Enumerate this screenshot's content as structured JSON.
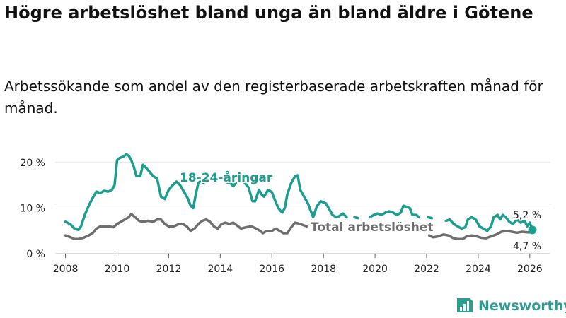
{
  "title": "Högre arbetslöshet bland unga än bland äldre i Götene",
  "subtitle": "Arbetssökande som andel av den registerbaserade arbetskraften månad för månad.",
  "brand": {
    "name": "Newsworthy",
    "icon": "bar-chart-logo-icon"
  },
  "colors": {
    "youth": "#1a9e8f",
    "total": "#6e6e6e",
    "grid": "#dddddd",
    "text": "#222222"
  },
  "chart_data": {
    "type": "line",
    "xlim": [
      2007.6,
      2026.8
    ],
    "ylim": [
      0,
      22
    ],
    "x_ticks": [
      2008,
      2010,
      2012,
      2014,
      2016,
      2018,
      2020,
      2022,
      2024,
      2026
    ],
    "x_tick_labels": [
      "2008",
      "2010",
      "2012",
      "2014",
      "2016",
      "2018",
      "2020",
      "2022",
      "2024",
      "2026"
    ],
    "y_ticks": [
      0,
      10,
      20
    ],
    "y_tick_labels": [
      "0 %",
      "10 %",
      "20 %"
    ],
    "grid": "horizontal",
    "series": [
      {
        "name": "18-24-åringar",
        "color": "#1a9e8f",
        "end_label": "5,2 %",
        "points": [
          [
            2008.0,
            7.0
          ],
          [
            2008.2,
            6.4
          ],
          [
            2008.35,
            5.5
          ],
          [
            2008.5,
            5.2
          ],
          [
            2008.6,
            6.0
          ],
          [
            2008.75,
            8.5
          ],
          [
            2008.9,
            10.5
          ],
          [
            2009.05,
            12.2
          ],
          [
            2009.2,
            13.6
          ],
          [
            2009.35,
            13.3
          ],
          [
            2009.5,
            13.8
          ],
          [
            2009.65,
            13.6
          ],
          [
            2009.8,
            14.0
          ],
          [
            2009.9,
            15.0
          ],
          [
            2010.0,
            20.5
          ],
          [
            2010.1,
            21.0
          ],
          [
            2010.25,
            21.3
          ],
          [
            2010.35,
            21.8
          ],
          [
            2010.45,
            21.5
          ],
          [
            2010.55,
            20.5
          ],
          [
            2010.65,
            19.0
          ],
          [
            2010.75,
            17.0
          ],
          [
            2010.9,
            17.0
          ],
          [
            2011.0,
            19.5
          ],
          [
            2011.1,
            19.0
          ],
          [
            2011.25,
            18.0
          ],
          [
            2011.4,
            17.0
          ],
          [
            2011.55,
            16.5
          ],
          [
            2011.7,
            12.5
          ],
          [
            2011.85,
            12.0
          ],
          [
            2012.0,
            14.0
          ],
          [
            2012.15,
            15.0
          ],
          [
            2012.3,
            15.8
          ],
          [
            2012.45,
            15.0
          ],
          [
            2012.6,
            13.5
          ],
          [
            2012.75,
            12.0
          ],
          [
            2012.85,
            10.5
          ],
          [
            2012.95,
            10.0
          ],
          [
            2013.05,
            13.0
          ],
          [
            2013.15,
            15.5
          ],
          [
            2013.25,
            16.0
          ],
          [
            2013.35,
            15.5
          ],
          null,
          [
            2014.2,
            16.0
          ],
          [
            2014.3,
            15.5
          ],
          [
            2014.4,
            15.5
          ],
          [
            2014.5,
            14.8
          ],
          [
            2014.6,
            15.5
          ],
          null,
          [
            2014.9,
            16.0
          ],
          [
            2014.95,
            15.5
          ],
          [
            2015.1,
            14.5
          ],
          [
            2015.25,
            11.5
          ],
          [
            2015.35,
            11.5
          ],
          [
            2015.5,
            14.0
          ],
          [
            2015.6,
            13.0
          ],
          [
            2015.7,
            12.5
          ],
          [
            2015.85,
            14.0
          ],
          [
            2016.0,
            13.5
          ],
          [
            2016.1,
            12.0
          ],
          [
            2016.25,
            10.0
          ],
          [
            2016.4,
            9.0
          ],
          [
            2016.5,
            10.0
          ],
          [
            2016.6,
            13.0
          ],
          [
            2016.75,
            15.5
          ],
          [
            2016.9,
            17.0
          ],
          [
            2017.0,
            17.2
          ],
          [
            2017.1,
            14.0
          ],
          [
            2017.25,
            12.5
          ],
          [
            2017.4,
            11.0
          ],
          [
            2017.5,
            9.5
          ],
          [
            2017.6,
            8.0
          ],
          [
            2017.75,
            10.5
          ],
          [
            2017.9,
            11.5
          ],
          [
            2018.1,
            11.0
          ],
          [
            2018.2,
            10.0
          ],
          [
            2018.35,
            8.5
          ],
          [
            2018.5,
            8.0
          ],
          [
            2018.6,
            8.2
          ],
          [
            2018.75,
            8.8
          ],
          [
            2018.9,
            8.0
          ],
          null,
          [
            2019.2,
            8.0
          ],
          [
            2019.35,
            7.8
          ],
          null,
          [
            2019.8,
            8.0
          ],
          [
            2019.95,
            8.5
          ],
          [
            2020.1,
            8.8
          ],
          [
            2020.25,
            8.5
          ],
          [
            2020.4,
            9.0
          ],
          [
            2020.55,
            9.3
          ],
          [
            2020.7,
            9.0
          ],
          [
            2020.85,
            8.5
          ],
          [
            2021.0,
            9.0
          ],
          [
            2021.1,
            10.5
          ],
          [
            2021.25,
            10.2
          ],
          [
            2021.35,
            10.0
          ],
          [
            2021.45,
            8.5
          ],
          [
            2021.6,
            8.5
          ],
          [
            2021.7,
            8.0
          ],
          null,
          [
            2022.05,
            8.0
          ],
          [
            2022.2,
            7.8
          ],
          null,
          [
            2022.75,
            7.2
          ],
          [
            2022.9,
            7.5
          ],
          [
            2023.05,
            6.5
          ],
          [
            2023.2,
            6.0
          ],
          [
            2023.35,
            5.5
          ],
          [
            2023.5,
            5.8
          ],
          [
            2023.6,
            7.5
          ],
          [
            2023.75,
            8.0
          ],
          [
            2023.9,
            7.5
          ],
          [
            2024.05,
            6.0
          ],
          [
            2024.2,
            5.5
          ],
          [
            2024.35,
            5.0
          ],
          [
            2024.5,
            6.0
          ],
          [
            2024.6,
            8.0
          ],
          [
            2024.75,
            8.5
          ],
          [
            2024.85,
            7.5
          ],
          [
            2024.95,
            8.5
          ],
          [
            2025.1,
            7.8
          ],
          [
            2025.2,
            7.0
          ],
          [
            2025.35,
            6.5
          ],
          [
            2025.5,
            7.5
          ],
          [
            2025.65,
            6.8
          ],
          [
            2025.8,
            7.2
          ],
          [
            2025.9,
            6.0
          ],
          [
            2026.0,
            6.8
          ],
          [
            2026.1,
            5.2
          ]
        ]
      },
      {
        "name": "Total arbetslöshet",
        "color": "#6e6e6e",
        "end_label": "4,7 %",
        "points": [
          [
            2008.0,
            4.0
          ],
          [
            2008.2,
            3.6
          ],
          [
            2008.35,
            3.2
          ],
          [
            2008.5,
            3.2
          ],
          [
            2008.7,
            3.5
          ],
          [
            2008.9,
            4.0
          ],
          [
            2009.05,
            4.5
          ],
          [
            2009.2,
            5.5
          ],
          [
            2009.35,
            6.0
          ],
          [
            2009.5,
            6.0
          ],
          [
            2009.7,
            6.0
          ],
          [
            2009.85,
            5.8
          ],
          [
            2010.0,
            6.5
          ],
          [
            2010.15,
            7.0
          ],
          [
            2010.3,
            7.5
          ],
          [
            2010.45,
            8.0
          ],
          [
            2010.55,
            8.7
          ],
          [
            2010.7,
            8.0
          ],
          [
            2010.85,
            7.2
          ],
          [
            2011.0,
            7.0
          ],
          [
            2011.2,
            7.2
          ],
          [
            2011.4,
            7.0
          ],
          [
            2011.55,
            7.5
          ],
          [
            2011.7,
            7.5
          ],
          [
            2011.85,
            6.5
          ],
          [
            2012.0,
            6.0
          ],
          [
            2012.2,
            6.0
          ],
          [
            2012.4,
            6.5
          ],
          [
            2012.55,
            6.5
          ],
          [
            2012.7,
            6.0
          ],
          [
            2012.85,
            5.0
          ],
          [
            2013.0,
            5.5
          ],
          [
            2013.15,
            6.5
          ],
          [
            2013.3,
            7.2
          ],
          [
            2013.45,
            7.5
          ],
          [
            2013.6,
            7.0
          ],
          [
            2013.75,
            6.0
          ],
          [
            2013.9,
            5.5
          ],
          [
            2014.05,
            6.5
          ],
          [
            2014.2,
            6.8
          ],
          [
            2014.35,
            6.5
          ],
          [
            2014.5,
            6.8
          ],
          [
            2014.65,
            6.2
          ],
          [
            2014.8,
            5.5
          ],
          [
            2015.0,
            5.8
          ],
          [
            2015.2,
            6.0
          ],
          [
            2015.4,
            5.5
          ],
          [
            2015.55,
            5.0
          ],
          [
            2015.65,
            4.5
          ],
          [
            2015.8,
            5.0
          ],
          [
            2016.0,
            5.0
          ],
          [
            2016.15,
            5.5
          ],
          [
            2016.3,
            5.0
          ],
          [
            2016.45,
            4.5
          ],
          [
            2016.6,
            4.5
          ],
          [
            2016.75,
            5.8
          ],
          [
            2016.9,
            6.8
          ],
          [
            2017.1,
            6.5
          ],
          [
            2017.25,
            6.2
          ],
          [
            2017.35,
            6.0
          ],
          null,
          [
            2022.1,
            4.0
          ],
          [
            2022.25,
            3.6
          ],
          [
            2022.45,
            3.8
          ],
          [
            2022.65,
            4.2
          ],
          [
            2022.85,
            4.0
          ],
          [
            2023.0,
            3.5
          ],
          [
            2023.2,
            3.2
          ],
          [
            2023.4,
            3.2
          ],
          [
            2023.55,
            3.8
          ],
          [
            2023.75,
            4.0
          ],
          [
            2023.95,
            3.8
          ],
          [
            2024.1,
            3.5
          ],
          [
            2024.3,
            3.4
          ],
          [
            2024.5,
            3.8
          ],
          [
            2024.7,
            4.2
          ],
          [
            2024.9,
            4.8
          ],
          [
            2025.1,
            5.0
          ],
          [
            2025.3,
            4.8
          ],
          [
            2025.5,
            4.6
          ],
          [
            2025.7,
            4.8
          ],
          [
            2025.9,
            4.7
          ],
          [
            2026.1,
            4.7
          ]
        ]
      }
    ],
    "labels": {
      "youth": "18-24-åringar",
      "total": "Total arbetslöshet",
      "youth_end": "5,2 %",
      "total_end": "4,7 %"
    }
  }
}
